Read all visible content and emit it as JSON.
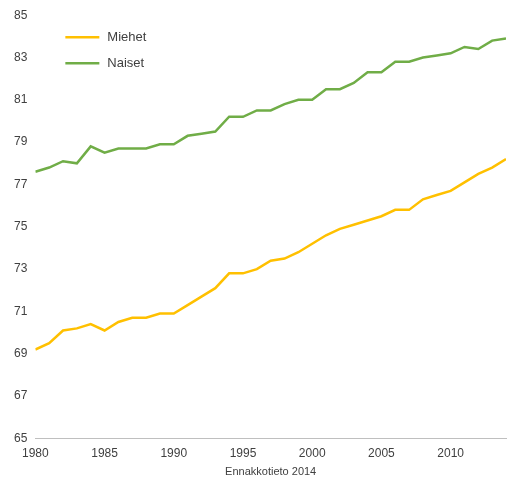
{
  "chart_data": {
    "type": "line",
    "x_label": "Ennakkotieto 2014",
    "x": [
      1980,
      1981,
      1982,
      1983,
      1984,
      1985,
      1986,
      1987,
      1988,
      1989,
      1990,
      1991,
      1992,
      1993,
      1994,
      1995,
      1996,
      1997,
      1998,
      1999,
      2000,
      2001,
      2002,
      2003,
      2004,
      2005,
      2006,
      2007,
      2008,
      2009,
      2010,
      2011,
      2012,
      2013,
      2014
    ],
    "series": [
      {
        "name": "Miehet",
        "color": "#ffc000",
        "values": [
          69.2,
          69.5,
          70.1,
          70.2,
          70.4,
          70.1,
          70.5,
          70.7,
          70.7,
          70.9,
          70.9,
          71.3,
          71.7,
          72.1,
          72.8,
          72.8,
          73.0,
          73.4,
          73.5,
          73.8,
          74.2,
          74.6,
          74.9,
          75.1,
          75.3,
          75.5,
          75.8,
          75.8,
          76.3,
          76.5,
          76.7,
          77.1,
          77.5,
          77.8,
          78.2
        ]
      },
      {
        "name": "Naiset",
        "color": "#70ad47",
        "values": [
          77.6,
          77.8,
          78.1,
          78.0,
          78.8,
          78.5,
          78.7,
          78.7,
          78.7,
          78.9,
          78.9,
          79.3,
          79.4,
          79.5,
          80.2,
          80.2,
          80.5,
          80.5,
          80.8,
          81.0,
          81.0,
          81.5,
          81.5,
          81.8,
          82.3,
          82.3,
          82.8,
          82.8,
          83.0,
          83.1,
          83.2,
          83.5,
          83.4,
          83.8,
          83.9
        ]
      }
    ],
    "xlim": [
      1980,
      2014
    ],
    "xticks": [
      1980,
      1985,
      1990,
      1995,
      2000,
      2005,
      2010
    ],
    "ylim": [
      65,
      85
    ],
    "yticks": [
      65,
      67,
      69,
      71,
      73,
      75,
      77,
      79,
      81,
      83,
      85
    ],
    "grid": false,
    "legend": "top-left"
  }
}
